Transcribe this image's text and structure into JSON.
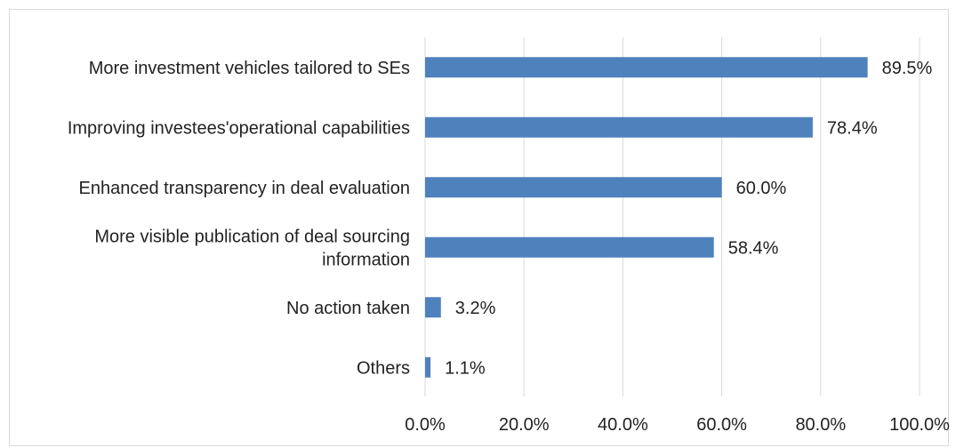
{
  "chart_data": {
    "type": "bar",
    "orientation": "horizontal",
    "categories": [
      [
        "More investment vehicles tailored to SEs"
      ],
      [
        "Improving investees'operational capabilities"
      ],
      [
        "Enhanced transparency in deal evaluation"
      ],
      [
        "More visible publication of deal sourcing",
        "information"
      ],
      [
        "No action taken"
      ],
      [
        "Others"
      ]
    ],
    "values": [
      89.5,
      78.4,
      60.0,
      58.4,
      3.2,
      1.1
    ],
    "value_labels": [
      "89.5%",
      "78.4%",
      "60.0%",
      "58.4%",
      "3.2%",
      "1.1%"
    ],
    "xlim": [
      0,
      100
    ],
    "x_ticks": [
      0,
      20,
      40,
      60,
      80,
      100
    ],
    "x_tick_labels": [
      "0.0%",
      "20.0%",
      "40.0%",
      "60.0%",
      "80.0%",
      "100.0%"
    ],
    "grid": "vertical",
    "bar_color": "#4f81bd",
    "grid_color": "#d9d9d9",
    "title": "",
    "xlabel": "",
    "ylabel": ""
  }
}
